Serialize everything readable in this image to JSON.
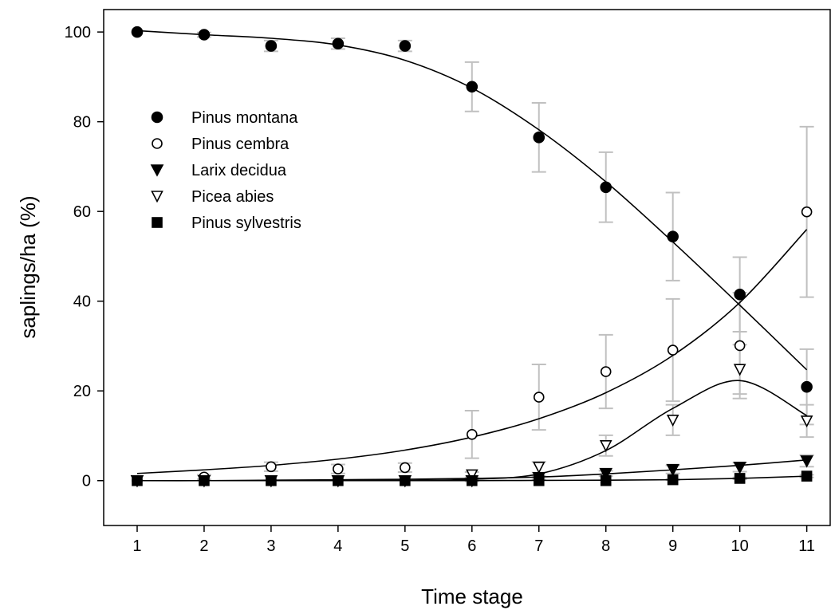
{
  "chart_data": {
    "type": "scatter",
    "xlabel": "Time stage",
    "ylabel": "saplings/ha (%)",
    "xlim": [
      0.5,
      11.35
    ],
    "ylim": [
      -10,
      105
    ],
    "x_ticks": [
      1,
      2,
      3,
      4,
      5,
      6,
      7,
      8,
      9,
      10,
      11
    ],
    "y_ticks": [
      0,
      20,
      40,
      60,
      80,
      100
    ],
    "grid": false,
    "legend_position": "upper-left",
    "x": [
      1,
      2,
      3,
      4,
      5,
      6,
      7,
      8,
      9,
      10,
      11
    ],
    "series": [
      {
        "name": "Pinus montana",
        "marker": "filled-circle",
        "values": [
          100,
          99.4,
          96.9,
          97.4,
          96.9,
          87.8,
          76.5,
          65.4,
          54.4,
          41.5,
          20.9
        ],
        "error": [
          0,
          0.5,
          1.2,
          1.2,
          1.2,
          5.5,
          7.7,
          7.8,
          9.8,
          8.3,
          8.4
        ],
        "fit": [
          100.3,
          99.4,
          98.6,
          97.1,
          93.7,
          87.5,
          78.2,
          66.6,
          53.2,
          39.1,
          24.7
        ]
      },
      {
        "name": "Pinus cembra",
        "marker": "open-circle",
        "values": [
          0,
          0.8,
          3.1,
          2.6,
          2.9,
          10.3,
          18.6,
          24.3,
          29.1,
          30.1,
          59.9
        ],
        "error": [
          0,
          0.5,
          1.0,
          1.0,
          1.0,
          5.3,
          7.3,
          8.2,
          11.4,
          11.8,
          19.0
        ],
        "fit": [
          1.6,
          2.4,
          3.4,
          4.8,
          6.8,
          9.7,
          13.8,
          19.6,
          27.9,
          39.7,
          56.0
        ]
      },
      {
        "name": "Larix decidua",
        "marker": "filled-triangle-down",
        "values": [
          0,
          0,
          0,
          0,
          0,
          0,
          0.7,
          1.6,
          2.5,
          3.0,
          4.4
        ],
        "error": [
          0,
          0,
          0,
          0,
          0,
          0.2,
          0.4,
          0.6,
          0.9,
          1.0,
          1.3
        ],
        "fit": [
          0,
          0,
          0.1,
          0.2,
          0.3,
          0.5,
          0.8,
          1.5,
          2.4,
          3.4,
          4.6
        ]
      },
      {
        "name": "Picea abies",
        "marker": "open-triangle-down",
        "values": [
          0,
          0,
          0,
          0,
          0,
          1.3,
          3.0,
          7.8,
          13.5,
          24.8,
          13.3
        ],
        "error": [
          0,
          0,
          0,
          0,
          0,
          0.6,
          1.2,
          2.3,
          3.4,
          5.5,
          3.6
        ],
        "fit": [
          0,
          0,
          0,
          0,
          0.05,
          0.3,
          1.5,
          6.7,
          16.1,
          22.3,
          14.5
        ]
      },
      {
        "name": "Pinus sylvestris",
        "marker": "filled-square",
        "values": [
          0,
          0,
          0,
          0,
          0,
          0,
          0,
          0,
          0.2,
          0.5,
          1.0
        ],
        "error": [
          0,
          0,
          0,
          0,
          0,
          0,
          0,
          0,
          0.1,
          0.2,
          0.3
        ],
        "fit": [
          0,
          0,
          0,
          0,
          0,
          0,
          0.05,
          0.1,
          0.2,
          0.5,
          1.0
        ]
      }
    ],
    "colors": {
      "marker": "#000000",
      "fit_line": "#000000",
      "error_bar": "#c0c0c0",
      "axis": "#000000"
    }
  }
}
